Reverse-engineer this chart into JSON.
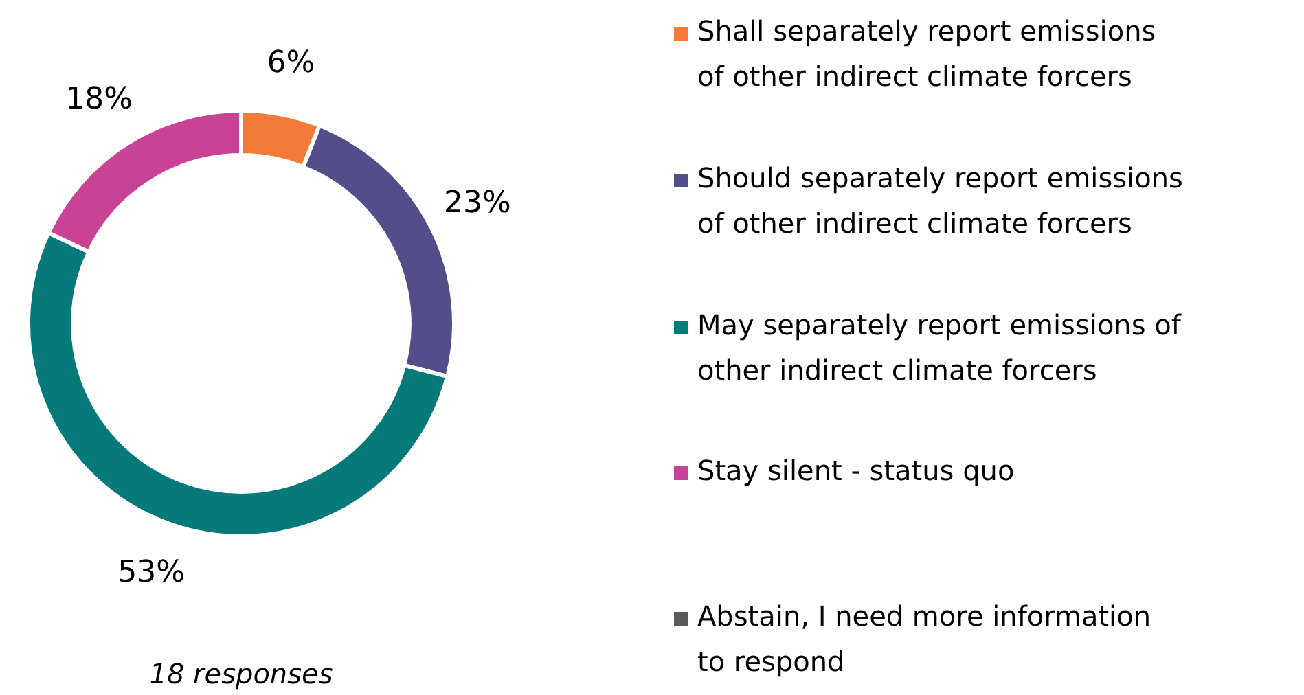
{
  "chart_data": {
    "type": "donut",
    "categories": [
      "Shall separately report emissions of other indirect climate forcers",
      "Should separately report emissions of other indirect climate forcers",
      "May separately report emissions of other indirect climate forcers",
      "Stay silent - status quo",
      "Abstain, I need more information to respond"
    ],
    "values": [
      6,
      23,
      53,
      18,
      0
    ],
    "colors": [
      "#f47a38",
      "#524e89",
      "#06797b",
      "#c84296",
      "#5a5a5a"
    ],
    "value_labels": [
      "6%",
      "23%",
      "53%",
      "18%",
      null
    ],
    "annotations": [
      "18 responses"
    ],
    "legend": "right"
  }
}
